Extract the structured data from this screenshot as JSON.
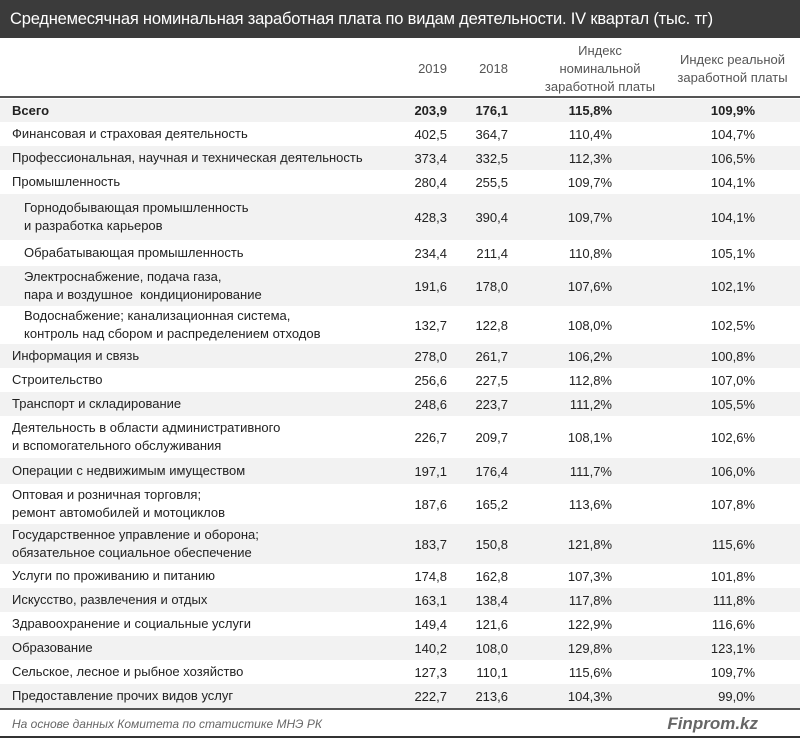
{
  "title": "Среднемесячная номинальная заработная плата по видам деятельности. IV квартал (тыс. тг)",
  "headers": {
    "y2019": "2019",
    "y2018": "2018",
    "nominal": "Индекс номинальной заработной платы",
    "real": "Индекс реальной заработной платы"
  },
  "rows": [
    {
      "label": "Всего",
      "v2019": "203,9",
      "v2018": "176,1",
      "nominal": "115,8%",
      "real": "109,9%"
    },
    {
      "label": "Финансовая и страховая деятельность",
      "v2019": "402,5",
      "v2018": "364,7",
      "nominal": "110,4%",
      "real": "104,7%"
    },
    {
      "label": "Профессиональная, научная и техническая деятельность",
      "v2019": "373,4",
      "v2018": "332,5",
      "nominal": "112,3%",
      "real": "106,5%"
    },
    {
      "label": "Промышленность",
      "v2019": "280,4",
      "v2018": "255,5",
      "nominal": "109,7%",
      "real": "104,1%"
    },
    {
      "label": "Горнодобывающая промышленность\nи разработка карьеров",
      "v2019": "428,3",
      "v2018": "390,4",
      "nominal": "109,7%",
      "real": "104,1%"
    },
    {
      "label": "Обрабатывающая промышленность",
      "v2019": "234,4",
      "v2018": "211,4",
      "nominal": "110,8%",
      "real": "105,1%"
    },
    {
      "label": "Электроснабжение, подача газа,\nпара и воздушное  кондиционирование",
      "v2019": "191,6",
      "v2018": "178,0",
      "nominal": "107,6%",
      "real": "102,1%"
    },
    {
      "label": "Водоснабжение; канализационная система,\nконтроль над сбором и распределением отходов",
      "v2019": "132,7",
      "v2018": "122,8",
      "nominal": "108,0%",
      "real": "102,5%"
    },
    {
      "label": "Информация и связь",
      "v2019": "278,0",
      "v2018": "261,7",
      "nominal": "106,2%",
      "real": "100,8%"
    },
    {
      "label": "Строительство",
      "v2019": "256,6",
      "v2018": "227,5",
      "nominal": "112,8%",
      "real": "107,0%"
    },
    {
      "label": "Транспорт и складирование",
      "v2019": "248,6",
      "v2018": "223,7",
      "nominal": "111,2%",
      "real": "105,5%"
    },
    {
      "label": "Деятельность в области административного\nи вспомогательного обслуживания",
      "v2019": "226,7",
      "v2018": "209,7",
      "nominal": "108,1%",
      "real": "102,6%"
    },
    {
      "label": "Операции с недвижимым имуществом",
      "v2019": "197,1",
      "v2018": "176,4",
      "nominal": "111,7%",
      "real": "106,0%"
    },
    {
      "label": "Оптовая и розничная торговля;\nремонт автомобилей и мотоциклов",
      "v2019": "187,6",
      "v2018": "165,2",
      "nominal": "113,6%",
      "real": "107,8%"
    },
    {
      "label": "Государственное управление и оборона;\nобязательное социальное обеспечение",
      "v2019": "183,7",
      "v2018": "150,8",
      "nominal": "121,8%",
      "real": "115,6%"
    },
    {
      "label": "Услуги по проживанию и питанию",
      "v2019": "174,8",
      "v2018": "162,8",
      "nominal": "107,3%",
      "real": "101,8%"
    },
    {
      "label": "Искусство, развлечения и отдых",
      "v2019": "163,1",
      "v2018": "138,4",
      "nominal": "117,8%",
      "real": "111,8%"
    },
    {
      "label": "Здравоохранение и социальные услуги",
      "v2019": "149,4",
      "v2018": "121,6",
      "nominal": "122,9%",
      "real": "116,6%"
    },
    {
      "label": "Образование",
      "v2019": "140,2",
      "v2018": "108,0",
      "nominal": "129,8%",
      "real": "123,1%"
    },
    {
      "label": "Сельское, лесное и рыбное хозяйство",
      "v2019": "127,3",
      "v2018": "110,1",
      "nominal": "115,6%",
      "real": "109,7%"
    },
    {
      "label": "Предоставление прочих видов услуг",
      "v2019": "222,7",
      "v2018": "213,6",
      "nominal": "104,3%",
      "real": "99,0%"
    }
  ],
  "footer": {
    "source": "На основе данных Комитета по статистике МНЭ РК",
    "brand": "Finprom.kz"
  }
}
